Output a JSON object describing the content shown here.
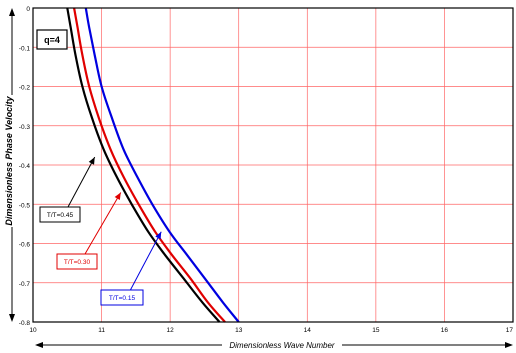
{
  "chart_data": {
    "type": "line",
    "title": "",
    "xlabel": "Dimensionless Wave Number",
    "ylabel": "Dimensionless Phase Velocity",
    "xlim": [
      10,
      17
    ],
    "ylim": [
      -0.8,
      0
    ],
    "x_ticks": [
      "10",
      "11",
      "12",
      "13",
      "14",
      "15",
      "16",
      "17"
    ],
    "y_ticks": [
      "0",
      "-0.1",
      "-0.2",
      "-0.3",
      "-0.4",
      "-0.5",
      "-0.6",
      "-0.7",
      "-0.8"
    ],
    "grid": true,
    "param_label": "q=4",
    "series": [
      {
        "name": "T/T=0.45",
        "color": "#000000",
        "x": [
          10.5,
          10.55,
          10.62,
          10.72,
          10.86,
          11.03,
          11.22,
          11.44,
          11.68,
          11.93,
          12.2,
          12.47,
          12.72
        ],
        "y": [
          0,
          -0.05,
          -0.12,
          -0.2,
          -0.28,
          -0.36,
          -0.43,
          -0.5,
          -0.57,
          -0.63,
          -0.69,
          -0.75,
          -0.8
        ]
      },
      {
        "name": "T/T=0.30",
        "color": "#e00000",
        "x": [
          10.6,
          10.65,
          10.72,
          10.82,
          10.96,
          11.13,
          11.32,
          11.54,
          11.78,
          12.03,
          12.3,
          12.55,
          12.8
        ],
        "y": [
          0,
          -0.05,
          -0.12,
          -0.2,
          -0.28,
          -0.36,
          -0.43,
          -0.5,
          -0.57,
          -0.63,
          -0.69,
          -0.75,
          -0.8
        ]
      },
      {
        "name": "T/T=0.15",
        "color": "#0000e0",
        "x": [
          10.77,
          10.82,
          10.9,
          11.0,
          11.15,
          11.32,
          11.52,
          11.74,
          11.99,
          12.25,
          12.51,
          12.77,
          13.0
        ],
        "y": [
          0,
          -0.05,
          -0.12,
          -0.2,
          -0.28,
          -0.36,
          -0.43,
          -0.5,
          -0.57,
          -0.63,
          -0.69,
          -0.75,
          -0.8
        ]
      }
    ],
    "annotations": [
      {
        "text": "T/T=0.45",
        "color": "#000000",
        "point": [
          10.9,
          -0.38
        ]
      },
      {
        "text": "T/T=0.30",
        "color": "#e00000",
        "point": [
          11.28,
          -0.47
        ]
      },
      {
        "text": "T/T=0.15",
        "color": "#0000e0",
        "point": [
          11.87,
          -0.57
        ]
      }
    ]
  }
}
